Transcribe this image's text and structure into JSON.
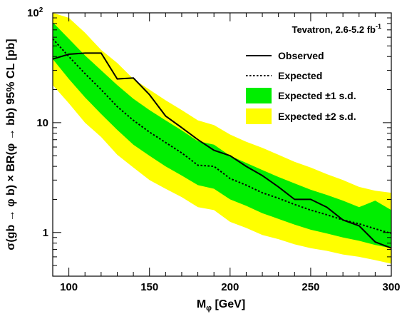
{
  "chart_data": {
    "type": "line",
    "annotation": "Tevatron, 2.6-5.2 fb",
    "annotation_sup": "-1",
    "xlabel": "M",
    "xlabel_sub": "φ",
    "xlabel_unit": " [GeV]",
    "ylabel": "σ(gb → φ b) × BR(φ → bb) 95% CL [pb]",
    "xlim": [
      90,
      300
    ],
    "ylim": [
      0.4,
      100
    ],
    "yscale": "log",
    "x_ticks": [
      "100",
      "150",
      "200",
      "250",
      "300"
    ],
    "y_ticks": [
      {
        "value": 1,
        "label": "1"
      },
      {
        "value": 10,
        "label": "10"
      },
      {
        "value": 100,
        "label": "10",
        "sup": "2"
      }
    ],
    "legend_position": "top-right",
    "x": [
      90,
      100,
      110,
      120,
      130,
      140,
      150,
      160,
      170,
      180,
      190,
      200,
      210,
      220,
      230,
      240,
      250,
      260,
      270,
      280,
      290,
      300
    ],
    "series": [
      {
        "name": "Observed",
        "style": "solid",
        "color": "#000000",
        "values": [
          38,
          42,
          43,
          43,
          25,
          25.5,
          18,
          11.5,
          9,
          7,
          5.6,
          5,
          4,
          3.3,
          2.6,
          2,
          2,
          1.7,
          1.3,
          1.15,
          0.82,
          0.72
        ]
      },
      {
        "name": "Expected",
        "style": "dotted",
        "color": "#000000",
        "values": [
          58,
          40,
          28,
          20,
          14,
          10.5,
          8.2,
          6.6,
          5.3,
          4.1,
          4,
          3.1,
          2.7,
          2.3,
          2.05,
          1.8,
          1.6,
          1.45,
          1.3,
          1.2,
          1.08,
          0.98
        ]
      }
    ],
    "bands": [
      {
        "name": "Expected ±2 s.d.",
        "color": "#ffff00",
        "low": [
          22,
          15,
          10,
          7.4,
          5.1,
          3.9,
          3.0,
          2.5,
          2.1,
          1.7,
          1.6,
          1.25,
          1.1,
          0.95,
          0.87,
          0.78,
          0.72,
          0.68,
          0.63,
          0.6,
          0.56,
          0.52
        ],
        "high": [
          100,
          90,
          66,
          46,
          35,
          25,
          20,
          16,
          13,
          10.5,
          9.5,
          7.8,
          6.7,
          5.9,
          5.1,
          4.4,
          3.9,
          3.4,
          3.0,
          2.6,
          2.4,
          2.3
        ]
      },
      {
        "name": "Expected ±1 s.d.",
        "color": "#00ee00",
        "low": [
          38,
          25,
          17,
          12,
          8.6,
          6.3,
          5.0,
          4.0,
          3.3,
          2.7,
          2.5,
          2.0,
          1.75,
          1.5,
          1.33,
          1.18,
          1.06,
          0.98,
          0.9,
          0.84,
          0.77,
          0.72
        ],
        "high": [
          82,
          58,
          41,
          30,
          22,
          16.5,
          13,
          10.5,
          8.5,
          6.8,
          6.3,
          5.0,
          4.3,
          3.7,
          3.2,
          2.8,
          2.45,
          2.2,
          1.95,
          1.7,
          1.95,
          1.6
        ]
      }
    ]
  }
}
